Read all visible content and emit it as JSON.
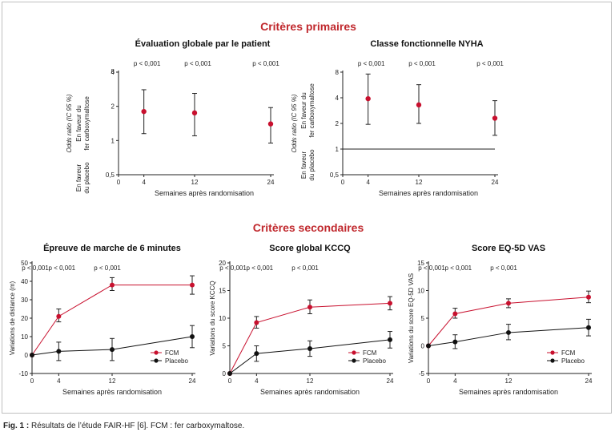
{
  "sections": {
    "primary": "Critères primaires",
    "secondary": "Critères secondaires"
  },
  "caption": {
    "label": "Fig. 1 :",
    "text": "Résultats de l’étude FAIR-HF [6]. FCM : fer carboxymaltose."
  },
  "colors": {
    "fcm": "#c8102e",
    "placebo": "#111111",
    "section": "#c0282d"
  },
  "chart_data": [
    {
      "id": "pga",
      "type": "scatter",
      "title": "Évaluation globale par le patient",
      "scale": "log",
      "ylabel_lines": [
        "Odds ratio (IC 95 %)",
        "En faveur du",
        "fer carboxymaltose",
        "En faveur",
        "du placebo"
      ],
      "xlabel": "Semaines après randomisation",
      "x_ticks": [
        0,
        4,
        12,
        24
      ],
      "y_ticks": [
        0.5,
        1,
        2,
        4
      ],
      "y_tick_labels": [
        "0,5",
        "1",
        "2",
        "4"
      ],
      "top_tick_label": "8",
      "ylim": [
        0.5,
        4
      ],
      "reference_line": 0.5,
      "p_values": [
        "p < 0,001",
        "p < 0,001",
        "p < 0,001"
      ],
      "series": [
        {
          "name": "",
          "x": [
            4,
            12,
            24
          ],
          "y": [
            1.8,
            1.75,
            1.4
          ],
          "lower": [
            1.15,
            1.1,
            0.95
          ],
          "upper": [
            2.8,
            2.6,
            1.95
          ]
        }
      ]
    },
    {
      "id": "nyha",
      "type": "scatter",
      "title": "Classe fonctionnelle NYHA",
      "scale": "log",
      "ylabel_lines": [
        "Odds ratio (IC 95 %)",
        "En faveur du",
        "fer carboxymaltose",
        "En faveur",
        "du placebo"
      ],
      "xlabel": "Semaines après randomisation",
      "x_ticks": [
        0,
        4,
        12,
        24
      ],
      "y_ticks": [
        0.5,
        1,
        2,
        4,
        8
      ],
      "y_tick_labels": [
        "0,5",
        "1",
        "2",
        "4",
        "8"
      ],
      "ylim": [
        0.5,
        8
      ],
      "reference_line": 1,
      "p_values": [
        "p < 0,001",
        "p < 0,001",
        "p < 0,001"
      ],
      "series": [
        {
          "name": "",
          "x": [
            4,
            12,
            24
          ],
          "y": [
            3.9,
            3.3,
            2.3
          ],
          "lower": [
            1.95,
            2.0,
            1.45
          ],
          "upper": [
            7.6,
            5.7,
            3.7
          ]
        }
      ]
    },
    {
      "id": "walk",
      "type": "line",
      "title": "Épreuve de marche de 6 minutes",
      "ylabel": "Variations de distance (m)",
      "xlabel": "Semaines après randomisation",
      "x_ticks": [
        0,
        4,
        12,
        24
      ],
      "y_ticks": [
        -10,
        0,
        10,
        20,
        30,
        40,
        50
      ],
      "ylim": [
        -10,
        50
      ],
      "p_values": [
        "p < 0,001",
        "p < 0,001",
        "p < 0,001"
      ],
      "legend": "bottom-right",
      "series": [
        {
          "name": "FCM",
          "color": "#c8102e",
          "x": [
            0,
            4,
            12,
            24
          ],
          "y": [
            0,
            21,
            38,
            38
          ],
          "lower": [
            0,
            18,
            35,
            33
          ],
          "upper": [
            0,
            25,
            42,
            43
          ]
        },
        {
          "name": "Placebo",
          "color": "#111111",
          "x": [
            0,
            4,
            12,
            24
          ],
          "y": [
            0,
            2,
            3,
            10
          ],
          "lower": [
            0,
            -3,
            -3,
            4
          ],
          "upper": [
            0,
            7,
            9,
            16
          ]
        }
      ]
    },
    {
      "id": "kccq",
      "type": "line",
      "title": "Score global KCCQ",
      "ylabel": "Variations du score KCCQ",
      "xlabel": "Semaines après randomisation",
      "x_ticks": [
        0,
        4,
        12,
        24
      ],
      "y_ticks": [
        0,
        5,
        10,
        15,
        20
      ],
      "ylim": [
        0,
        20
      ],
      "p_values": [
        "p < 0,001",
        "p < 0,001",
        "p < 0,001"
      ],
      "legend": "bottom-right",
      "series": [
        {
          "name": "FCM",
          "color": "#c8102e",
          "x": [
            0,
            4,
            12,
            24
          ],
          "y": [
            0,
            9.2,
            12,
            12.7
          ],
          "lower": [
            0,
            8.2,
            10.8,
            11.5
          ],
          "upper": [
            0,
            10.3,
            13.3,
            13.9
          ]
        },
        {
          "name": "Placebo",
          "color": "#111111",
          "x": [
            0,
            4,
            12,
            24
          ],
          "y": [
            0,
            3.6,
            4.5,
            6.1
          ],
          "lower": [
            0,
            2.2,
            3.1,
            4.6
          ],
          "upper": [
            0,
            5.0,
            5.9,
            7.6
          ]
        }
      ]
    },
    {
      "id": "eq5d",
      "type": "line",
      "title": "Score EQ-5D VAS",
      "ylabel": "Variations du score EQ-5D VAS",
      "xlabel": "Semaines après randomisation",
      "x_ticks": [
        0,
        4,
        12,
        24
      ],
      "y_ticks": [
        -5,
        0,
        5,
        10,
        15
      ],
      "ylim": [
        -5,
        15
      ],
      "p_values": [
        "p < 0,001",
        "p < 0,001",
        "p < 0,001"
      ],
      "legend": "bottom-right",
      "series": [
        {
          "name": "FCM",
          "color": "#c8102e",
          "x": [
            0,
            4,
            12,
            24
          ],
          "y": [
            0,
            5.8,
            7.7,
            8.8
          ],
          "lower": [
            0,
            5.0,
            6.9,
            7.8
          ],
          "upper": [
            0,
            6.8,
            8.5,
            9.9
          ]
        },
        {
          "name": "Placebo",
          "color": "#111111",
          "x": [
            0,
            4,
            12,
            24
          ],
          "y": [
            0,
            0.7,
            2.4,
            3.3
          ],
          "lower": [
            0,
            -0.5,
            1.1,
            1.8
          ],
          "upper": [
            0,
            2.0,
            3.9,
            4.8
          ]
        }
      ]
    }
  ]
}
